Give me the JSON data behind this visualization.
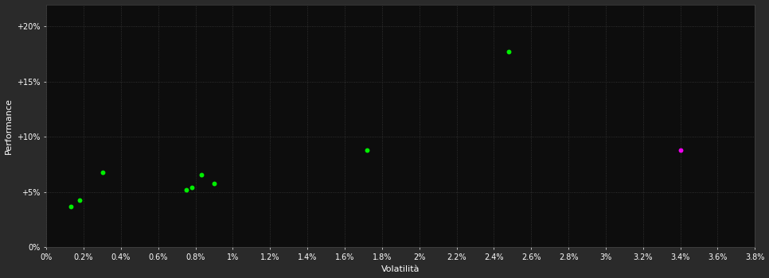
{
  "background_color": "#2a2a2a",
  "plot_bg_color": "#0d0d0d",
  "grid_color": "#3a3a3a",
  "text_color": "#ffffff",
  "xlabel": "Volatilità",
  "ylabel": "Performance",
  "xlim": [
    0.0,
    0.038
  ],
  "ylim": [
    0.0,
    0.22
  ],
  "x_ticks": [
    0.0,
    0.002,
    0.004,
    0.006,
    0.008,
    0.01,
    0.012,
    0.014,
    0.016,
    0.018,
    0.02,
    0.022,
    0.024,
    0.026,
    0.028,
    0.03,
    0.032,
    0.034,
    0.036,
    0.038
  ],
  "x_tick_labels": [
    "0%",
    "0.2%",
    "0.4%",
    "0.6%",
    "0.8%",
    "1%",
    "1.2%",
    "1.4%",
    "1.6%",
    "1.8%",
    "2%",
    "2.2%",
    "2.4%",
    "2.6%",
    "2.8%",
    "3%",
    "3.2%",
    "3.4%",
    "3.6%",
    "3.8%"
  ],
  "y_ticks": [
    0.0,
    0.05,
    0.1,
    0.15,
    0.2
  ],
  "y_tick_labels": [
    "0%",
    "+5%",
    "+10%",
    "+15%",
    "+20%"
  ],
  "green_points": [
    [
      0.0013,
      0.037
    ],
    [
      0.0018,
      0.043
    ],
    [
      0.003,
      0.068
    ],
    [
      0.0075,
      0.052
    ],
    [
      0.0078,
      0.054
    ],
    [
      0.0083,
      0.066
    ],
    [
      0.009,
      0.058
    ],
    [
      0.0172,
      0.088
    ],
    [
      0.0248,
      0.177
    ]
  ],
  "magenta_points": [
    [
      0.034,
      0.088
    ]
  ],
  "point_size": 18,
  "green_color": "#00ee00",
  "magenta_color": "#ee00ee"
}
